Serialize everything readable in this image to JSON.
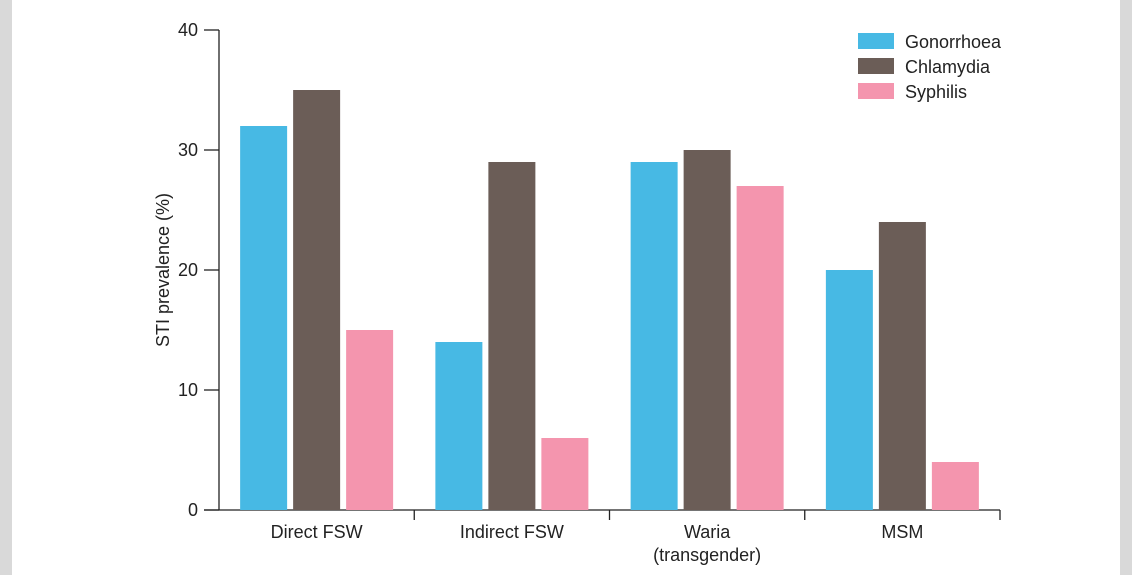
{
  "chart_data": {
    "type": "bar",
    "ylabel": "STI prevalence (%)",
    "xlabel": "",
    "ylim": [
      0,
      40
    ],
    "yticks": [
      "0",
      "10",
      "20",
      "30",
      "40"
    ],
    "categories": [
      [
        "Direct FSW"
      ],
      [
        "Indirect FSW"
      ],
      [
        "Waria",
        "(transgender)"
      ],
      [
        "MSM"
      ]
    ],
    "series": [
      {
        "name": "Gonorrhoea",
        "color": "#47b9e4",
        "values": [
          32,
          14,
          29,
          20
        ]
      },
      {
        "name": "Chlamydia",
        "color": "#6b5d57",
        "values": [
          35,
          29,
          30,
          24
        ]
      },
      {
        "name": "Syphilis",
        "color": "#f495ae",
        "values": [
          15,
          6,
          27,
          4
        ]
      }
    ],
    "legend_position": "top-right",
    "grid": false
  }
}
